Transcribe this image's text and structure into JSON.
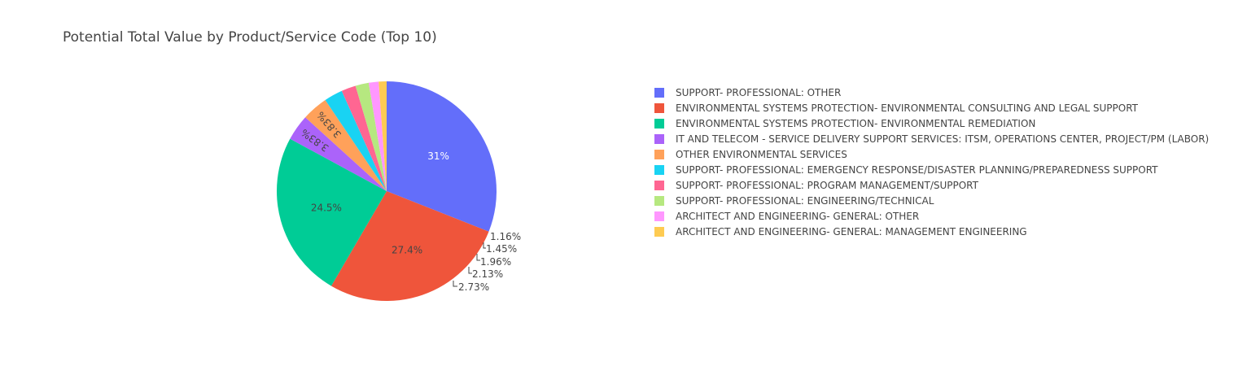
{
  "chart_data": {
    "type": "pie",
    "title": "Potential Total Value by Product/Service Code (Top 10)",
    "legend_position": "right",
    "slices": [
      {
        "label": "SUPPORT- PROFESSIONAL: OTHER",
        "percent": 31,
        "percent_label": "31%",
        "color": "#636efa",
        "label_color": "#ffffff"
      },
      {
        "label": "ENVIRONMENTAL SYSTEMS PROTECTION- ENVIRONMENTAL CONSULTING AND LEGAL SUPPORT",
        "percent": 27.4,
        "percent_label": "27.4%",
        "color": "#EF553B",
        "label_color": "#444444"
      },
      {
        "label": "ENVIRONMENTAL SYSTEMS PROTECTION- ENVIRONMENTAL REMEDIATION",
        "percent": 24.5,
        "percent_label": "24.5%",
        "color": "#00cc96",
        "label_color": "#444444"
      },
      {
        "label": "IT AND TELECOM - SERVICE DELIVERY SUPPORT SERVICES: ITSM, OPERATIONS CENTER, PROJECT/PM (LABOR)",
        "percent": 3.83,
        "percent_label": "3.83%",
        "color": "#ab63fa",
        "label_color": "#444444"
      },
      {
        "label": "OTHER ENVIRONMENTAL SERVICES",
        "percent": 3.83,
        "percent_label": "3.83%",
        "color": "#FFA15A",
        "label_color": "#444444"
      },
      {
        "label": "SUPPORT- PROFESSIONAL: EMERGENCY RESPONSE/DISASTER PLANNING/PREPAREDNESS SUPPORT",
        "percent": 2.73,
        "percent_label": "2.73%",
        "color": "#19d3f3",
        "label_color": "#444444"
      },
      {
        "label": "SUPPORT- PROFESSIONAL: PROGRAM MANAGEMENT/SUPPORT",
        "percent": 2.13,
        "percent_label": "2.13%",
        "color": "#FF6692",
        "label_color": "#444444"
      },
      {
        "label": "SUPPORT- PROFESSIONAL: ENGINEERING/TECHNICAL",
        "percent": 1.96,
        "percent_label": "1.96%",
        "color": "#B6E880",
        "label_color": "#444444"
      },
      {
        "label": "ARCHITECT AND ENGINEERING- GENERAL: OTHER",
        "percent": 1.45,
        "percent_label": "1.45%",
        "color": "#FF97FF",
        "label_color": "#444444"
      },
      {
        "label": "ARCHITECT AND ENGINEERING- GENERAL: MANAGEMENT ENGINEERING",
        "percent": 1.16,
        "percent_label": "1.16%",
        "color": "#FECB52",
        "label_color": "#444444"
      }
    ]
  }
}
